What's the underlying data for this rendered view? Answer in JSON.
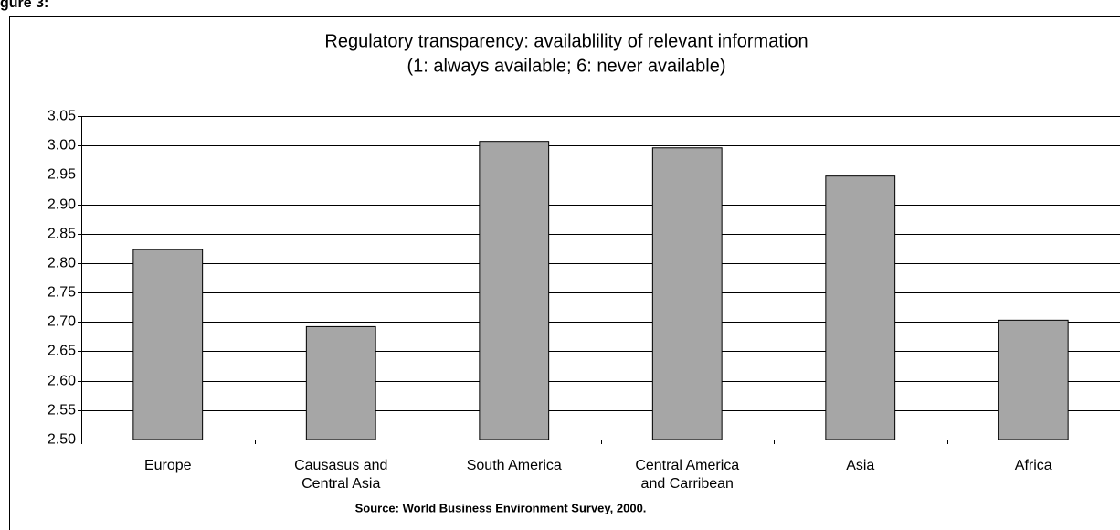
{
  "figure_label": "gure 3:",
  "chart_data": {
    "type": "bar",
    "title": "Regulatory transparency: availablility of relevant information",
    "subtitle": "(1: always available; 6: never available)",
    "source": "Source: World Business Environment Survey, 2000.",
    "categories": [
      "Europe",
      "Causasus and Central Asia",
      "South America",
      "Central America and Carribean",
      "Asia",
      "Africa"
    ],
    "values": [
      2.823,
      2.692,
      3.007,
      2.996,
      2.948,
      2.703
    ],
    "color": "#a6a6a6",
    "ylim": [
      2.5,
      3.05
    ],
    "yticks": [
      {
        "value": 2.5,
        "label": "2.50"
      },
      2.55,
      {
        "value": 2.6,
        "label": "2.60"
      },
      2.65,
      {
        "value": 2.7,
        "label": "2.70"
      },
      2.75,
      {
        "value": 2.8,
        "label": "2.80"
      },
      2.85,
      {
        "value": 2.9,
        "label": "2.90"
      },
      2.95,
      {
        "value": 3.0,
        "label": "3.00"
      },
      3.05
    ],
    "grid": true
  }
}
